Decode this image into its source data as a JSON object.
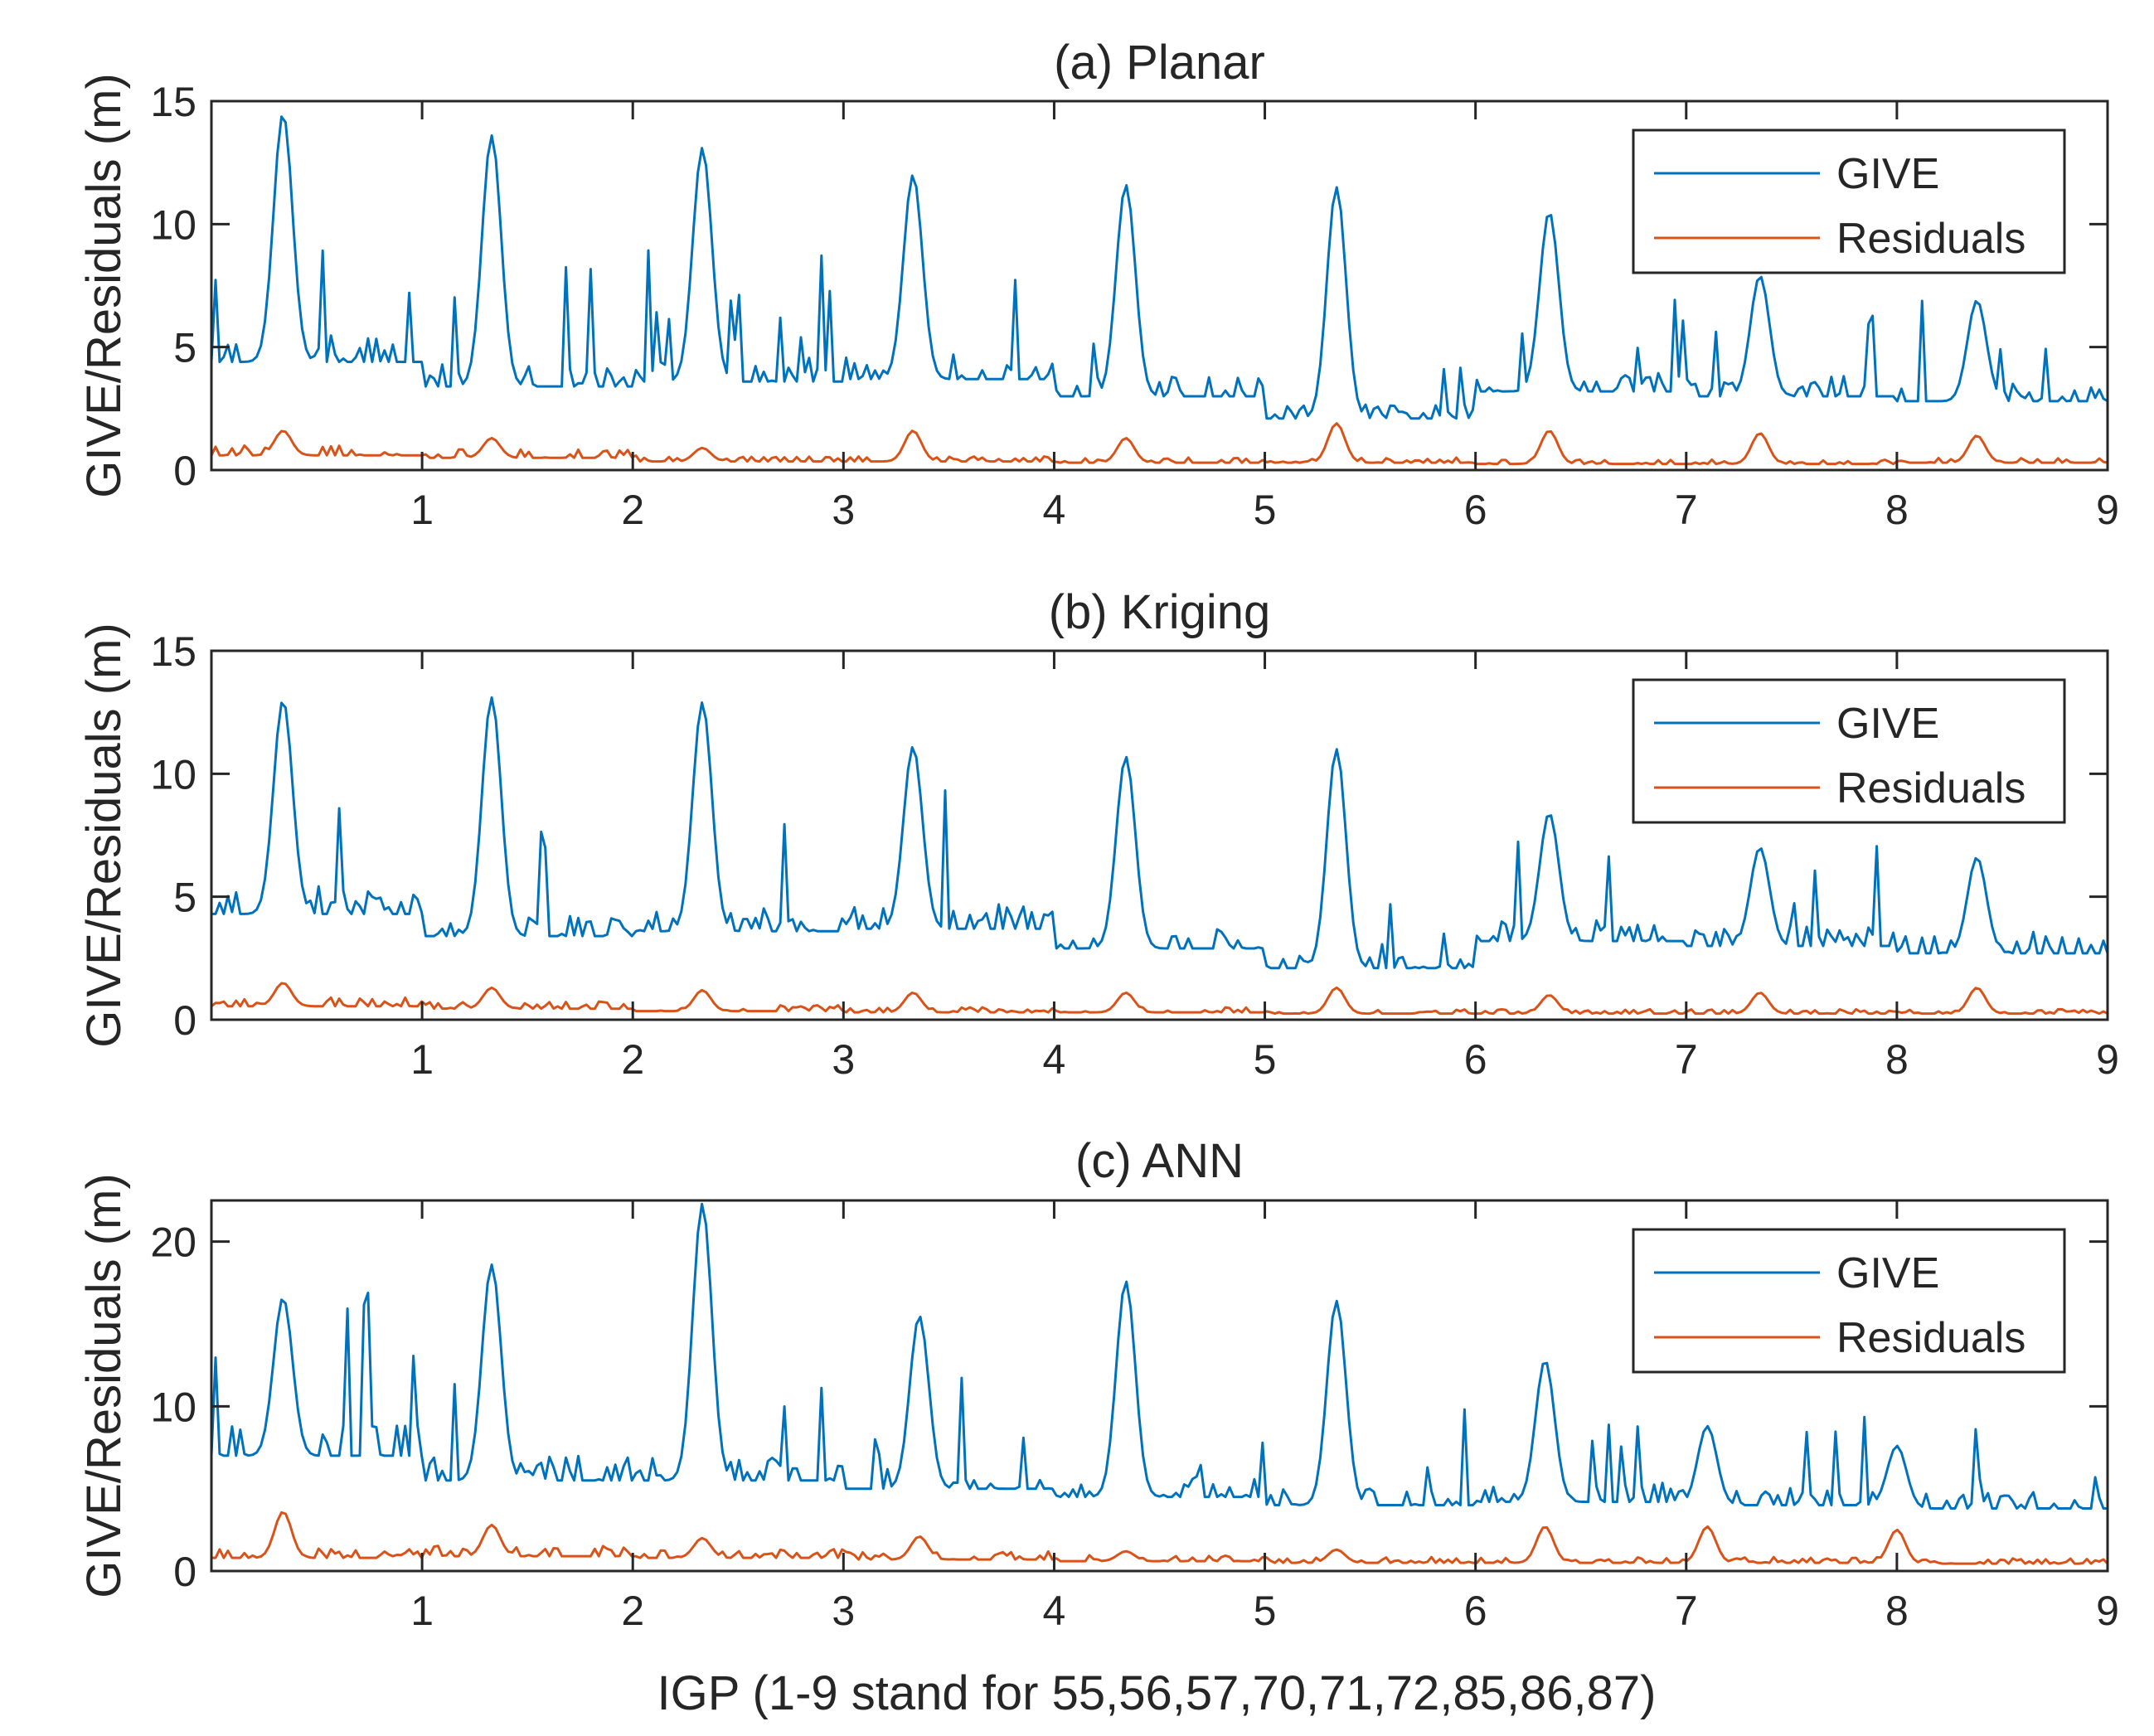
{
  "figure": {
    "xlabel": "IGP (1-9 stand for 55,56,57,70,71,72,85,86,87)",
    "ylabel": "GIVE/Residuals (m)",
    "legend": {
      "give": "GIVE",
      "residuals": "Residuals"
    },
    "colors": {
      "give": "#0072BD",
      "residuals": "#D95319"
    }
  },
  "chart_data": [
    {
      "type": "line",
      "title": "(a) Planar",
      "xlim": [
        0,
        9
      ],
      "ylim": [
        0,
        15
      ],
      "xticks": [
        1,
        2,
        3,
        4,
        5,
        6,
        7,
        8,
        9
      ],
      "yticks": [
        0,
        5,
        10,
        15
      ],
      "legend_position": "top-right",
      "peak_positions": [
        0.34,
        1.33,
        2.33,
        3.33,
        4.34,
        5.34,
        6.35,
        7.35,
        8.38
      ],
      "series": [
        {
          "name": "GIVE",
          "baseline": [
            4.4,
            3.4,
            3.6,
            3.7,
            3.0,
            2.1,
            3.2,
            3.0,
            2.8
          ],
          "peaks": [
            14.5,
            13.6,
            13.1,
            12.0,
            11.6,
            11.5,
            10.5,
            7.9,
            6.9
          ]
        },
        {
          "name": "Residuals",
          "baseline": [
            0.6,
            0.5,
            0.35,
            0.35,
            0.3,
            0.3,
            0.25,
            0.25,
            0.3
          ],
          "peaks": [
            1.6,
            1.3,
            0.9,
            1.6,
            1.3,
            1.9,
            1.6,
            1.5,
            1.4
          ]
        }
      ]
    },
    {
      "type": "line",
      "title": "(b) Kriging",
      "xlim": [
        0,
        9
      ],
      "ylim": [
        0,
        15
      ],
      "xticks": [
        1,
        2,
        3,
        4,
        5,
        6,
        7,
        8,
        9
      ],
      "yticks": [
        0,
        5,
        10,
        15
      ],
      "legend_position": "top-right",
      "peak_positions": [
        0.34,
        1.33,
        2.33,
        3.33,
        4.34,
        5.34,
        6.35,
        7.35,
        8.38
      ],
      "series": [
        {
          "name": "GIVE",
          "baseline": [
            4.3,
            3.4,
            3.6,
            3.7,
            2.9,
            2.1,
            3.2,
            3.0,
            2.7
          ],
          "peaks": [
            13.0,
            13.1,
            12.9,
            11.1,
            10.7,
            11.0,
            8.4,
            7.0,
            6.6
          ]
        },
        {
          "name": "Residuals",
          "baseline": [
            0.55,
            0.45,
            0.35,
            0.3,
            0.3,
            0.25,
            0.25,
            0.25,
            0.25
          ],
          "peaks": [
            1.5,
            1.3,
            1.2,
            1.1,
            1.1,
            1.3,
            1.0,
            1.1,
            1.3
          ]
        }
      ]
    },
    {
      "type": "line",
      "title": "(c) ANN",
      "xlim": [
        0,
        9
      ],
      "ylim": [
        0,
        22.5
      ],
      "xticks": [
        1,
        2,
        3,
        4,
        5,
        6,
        7,
        8,
        9
      ],
      "yticks": [
        0,
        10,
        20
      ],
      "legend_position": "top-right",
      "peak_positions": [
        0.34,
        1.33,
        2.33,
        3.36,
        4.34,
        5.34,
        6.33,
        7.1,
        8.0
      ],
      "series": [
        {
          "name": "GIVE",
          "baseline": [
            7.0,
            5.5,
            5.5,
            5.0,
            4.5,
            4.0,
            4.2,
            4.0,
            3.8
          ],
          "peaks": [
            16.6,
            18.6,
            22.3,
            15.5,
            17.6,
            16.4,
            12.8,
            8.8,
            7.6
          ]
        },
        {
          "name": "Residuals",
          "baseline": [
            0.8,
            0.9,
            0.8,
            0.7,
            0.6,
            0.5,
            0.5,
            0.5,
            0.45
          ],
          "peaks": [
            3.6,
            2.8,
            2.0,
            2.1,
            1.2,
            1.3,
            2.7,
            2.7,
            2.5
          ]
        }
      ]
    }
  ]
}
